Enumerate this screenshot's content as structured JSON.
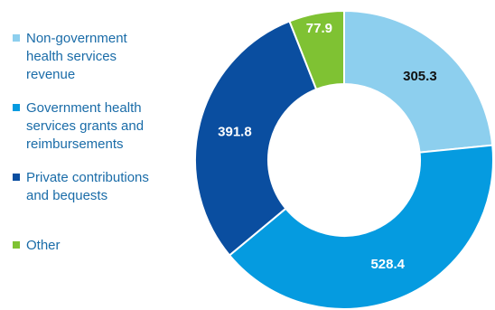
{
  "chart_data": {
    "type": "pie",
    "categories": [
      "Non-government\nhealth services\nrevenue",
      "Government health\nservices grants and\nreimbursements",
      "Private contributions\nand bequests",
      "Other"
    ],
    "values": [
      305.3,
      528.4,
      391.8,
      77.9
    ],
    "value_labels": [
      "305.3",
      "528.4",
      "391.8",
      "77.9"
    ],
    "colors": [
      "#8dcfee",
      "#059be0",
      "#0a4ea0",
      "#7fc233"
    ],
    "label_colors": [
      "#111111",
      "#ffffff",
      "#ffffff",
      "#ffffff"
    ],
    "donut": true,
    "legend_position": "left"
  }
}
